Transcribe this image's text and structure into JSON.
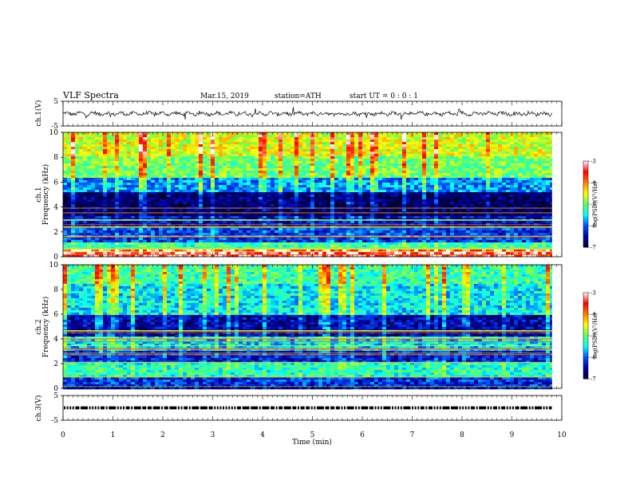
{
  "header": {
    "title": "VLF  Spectra",
    "date": "Mar.15, 2019",
    "station": "station=ATH",
    "start_ut": "start  UT  =   0  : 0  : 1"
  },
  "chart_data": [
    {
      "type": "line",
      "panel": "ch1-waveform",
      "ylabel": "ch.1(V)",
      "ylim": [
        -5,
        5
      ],
      "yticks": [
        "5",
        "-5"
      ],
      "x_range_min": [
        0,
        9.8
      ],
      "description_values": "noisy waveform around 0 V, amplitude about ±1 V with occasional spikes"
    },
    {
      "type": "heatmap",
      "panel": "ch1-spectrogram",
      "ylabel_channel": "ch.1",
      "ylabel": "Frequency  (kHz)",
      "ylim": [
        0,
        10
      ],
      "yticks": [
        "0",
        "2",
        "4",
        "6",
        "8",
        "10"
      ],
      "colorbar": {
        "label": "log(PSD)(V²/Hz)",
        "range": [
          -7,
          -3
        ],
        "ticks": [
          "-3",
          "-4",
          "-5",
          "-6",
          "-7"
        ]
      },
      "bands": [
        {
          "from": 0.0,
          "to": 0.6,
          "level": -3.3
        },
        {
          "from": 0.6,
          "to": 1.2,
          "level": -5.2
        },
        {
          "from": 1.2,
          "to": 2.4,
          "level": -6.1
        },
        {
          "from": 2.4,
          "to": 3.3,
          "level": -6.4
        },
        {
          "from": 3.3,
          "to": 5.2,
          "level": -6.8
        },
        {
          "from": 5.2,
          "to": 6.4,
          "level": -5.8
        },
        {
          "from": 6.4,
          "to": 8.0,
          "level": -5.0
        },
        {
          "from": 8.0,
          "to": 10.0,
          "level": -4.6
        }
      ]
    },
    {
      "type": "heatmap",
      "panel": "ch2-spectrogram",
      "ylabel_channel": "ch.2",
      "ylabel": "Frequency  (kHz)",
      "ylim": [
        0,
        10
      ],
      "yticks": [
        "0",
        "2",
        "4",
        "6",
        "8",
        "10"
      ],
      "colorbar": {
        "label": "log(PSD)(V²/Hz)",
        "range": [
          -7,
          -3
        ],
        "ticks": [
          "-3",
          "-4",
          "-5",
          "-6",
          "-7"
        ]
      },
      "bands": [
        {
          "from": 0.0,
          "to": 1.0,
          "level": -6.2
        },
        {
          "from": 1.0,
          "to": 2.1,
          "level": -5.3
        },
        {
          "from": 2.1,
          "to": 3.0,
          "level": -6.3
        },
        {
          "from": 3.0,
          "to": 4.2,
          "level": -5.6
        },
        {
          "from": 4.2,
          "to": 6.0,
          "level": -6.5
        },
        {
          "from": 6.0,
          "to": 8.5,
          "level": -5.5
        },
        {
          "from": 8.5,
          "to": 10.0,
          "level": -5.2
        }
      ]
    },
    {
      "type": "line",
      "panel": "ch3-timecode",
      "ylabel": "ch.3(V)",
      "ylim": [
        -5,
        5
      ],
      "yticks": [
        "5",
        "-5"
      ],
      "description_values": "binary timecode pulses near 0 V"
    }
  ],
  "xaxis": {
    "label": "Time  (min)",
    "ticks": [
      "0",
      "1",
      "2",
      "3",
      "4",
      "5",
      "6",
      "7",
      "8",
      "9",
      "10"
    ],
    "range": [
      0,
      10
    ]
  },
  "colors": {
    "waveform": "#000000",
    "colormap": [
      "#000033",
      "#0000aa",
      "#0050ff",
      "#00ffff",
      "#60ff60",
      "#ffff00",
      "#ff8000",
      "#ff0000",
      "#ffffff"
    ]
  }
}
